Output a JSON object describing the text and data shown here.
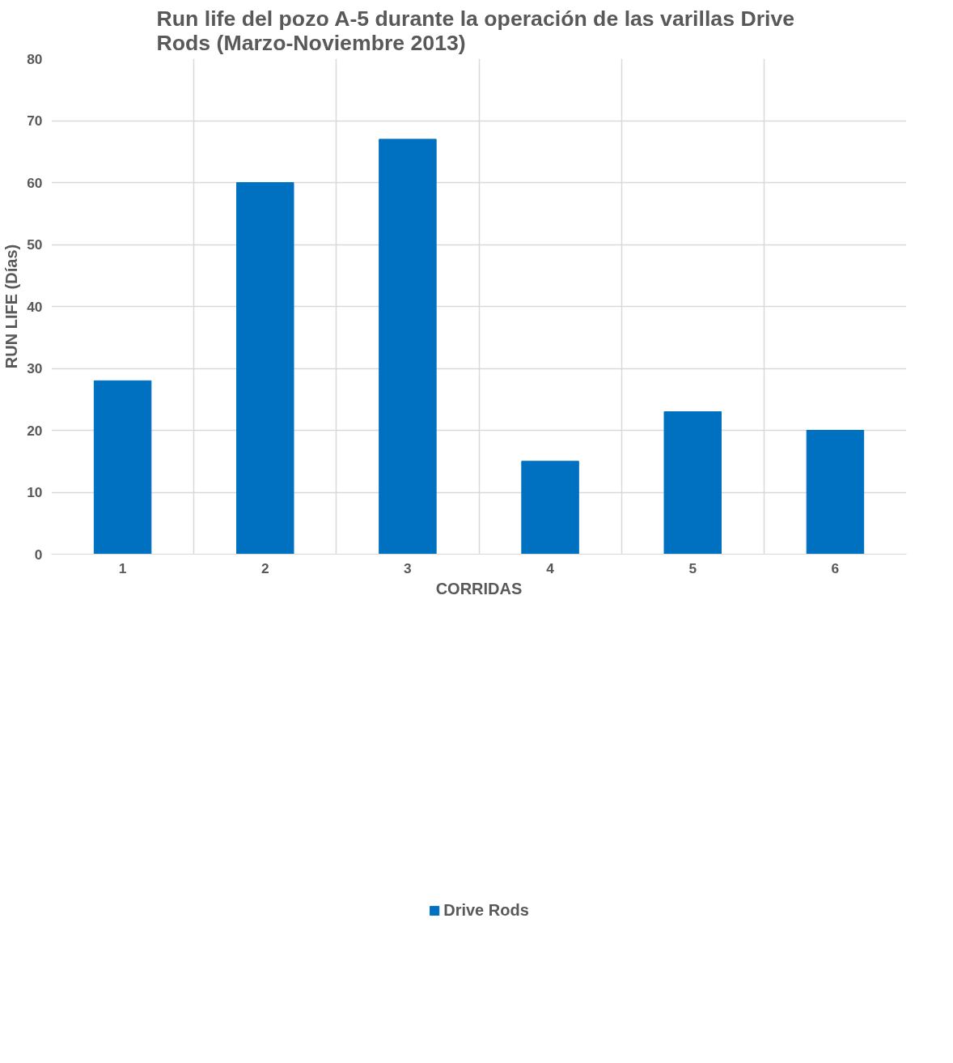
{
  "chart_data": {
    "type": "bar",
    "title": "Run life del pozo A-5 durante  la operación de las varillas Drive Rods (Marzo-Noviembre 2013)",
    "xlabel": "CORRIDAS",
    "ylabel": "RUN LIFE (Días)",
    "categories": [
      "1",
      "2",
      "3",
      "4",
      "5",
      "6"
    ],
    "series": [
      {
        "name": "Drive Rods",
        "color": "#0070c0",
        "values": [
          28,
          60,
          67,
          15,
          23,
          20
        ]
      }
    ],
    "ylim": [
      0,
      80
    ],
    "yticks": [
      0,
      10,
      20,
      30,
      40,
      50,
      60,
      70,
      80
    ],
    "grid": true,
    "legend": "bottom"
  }
}
